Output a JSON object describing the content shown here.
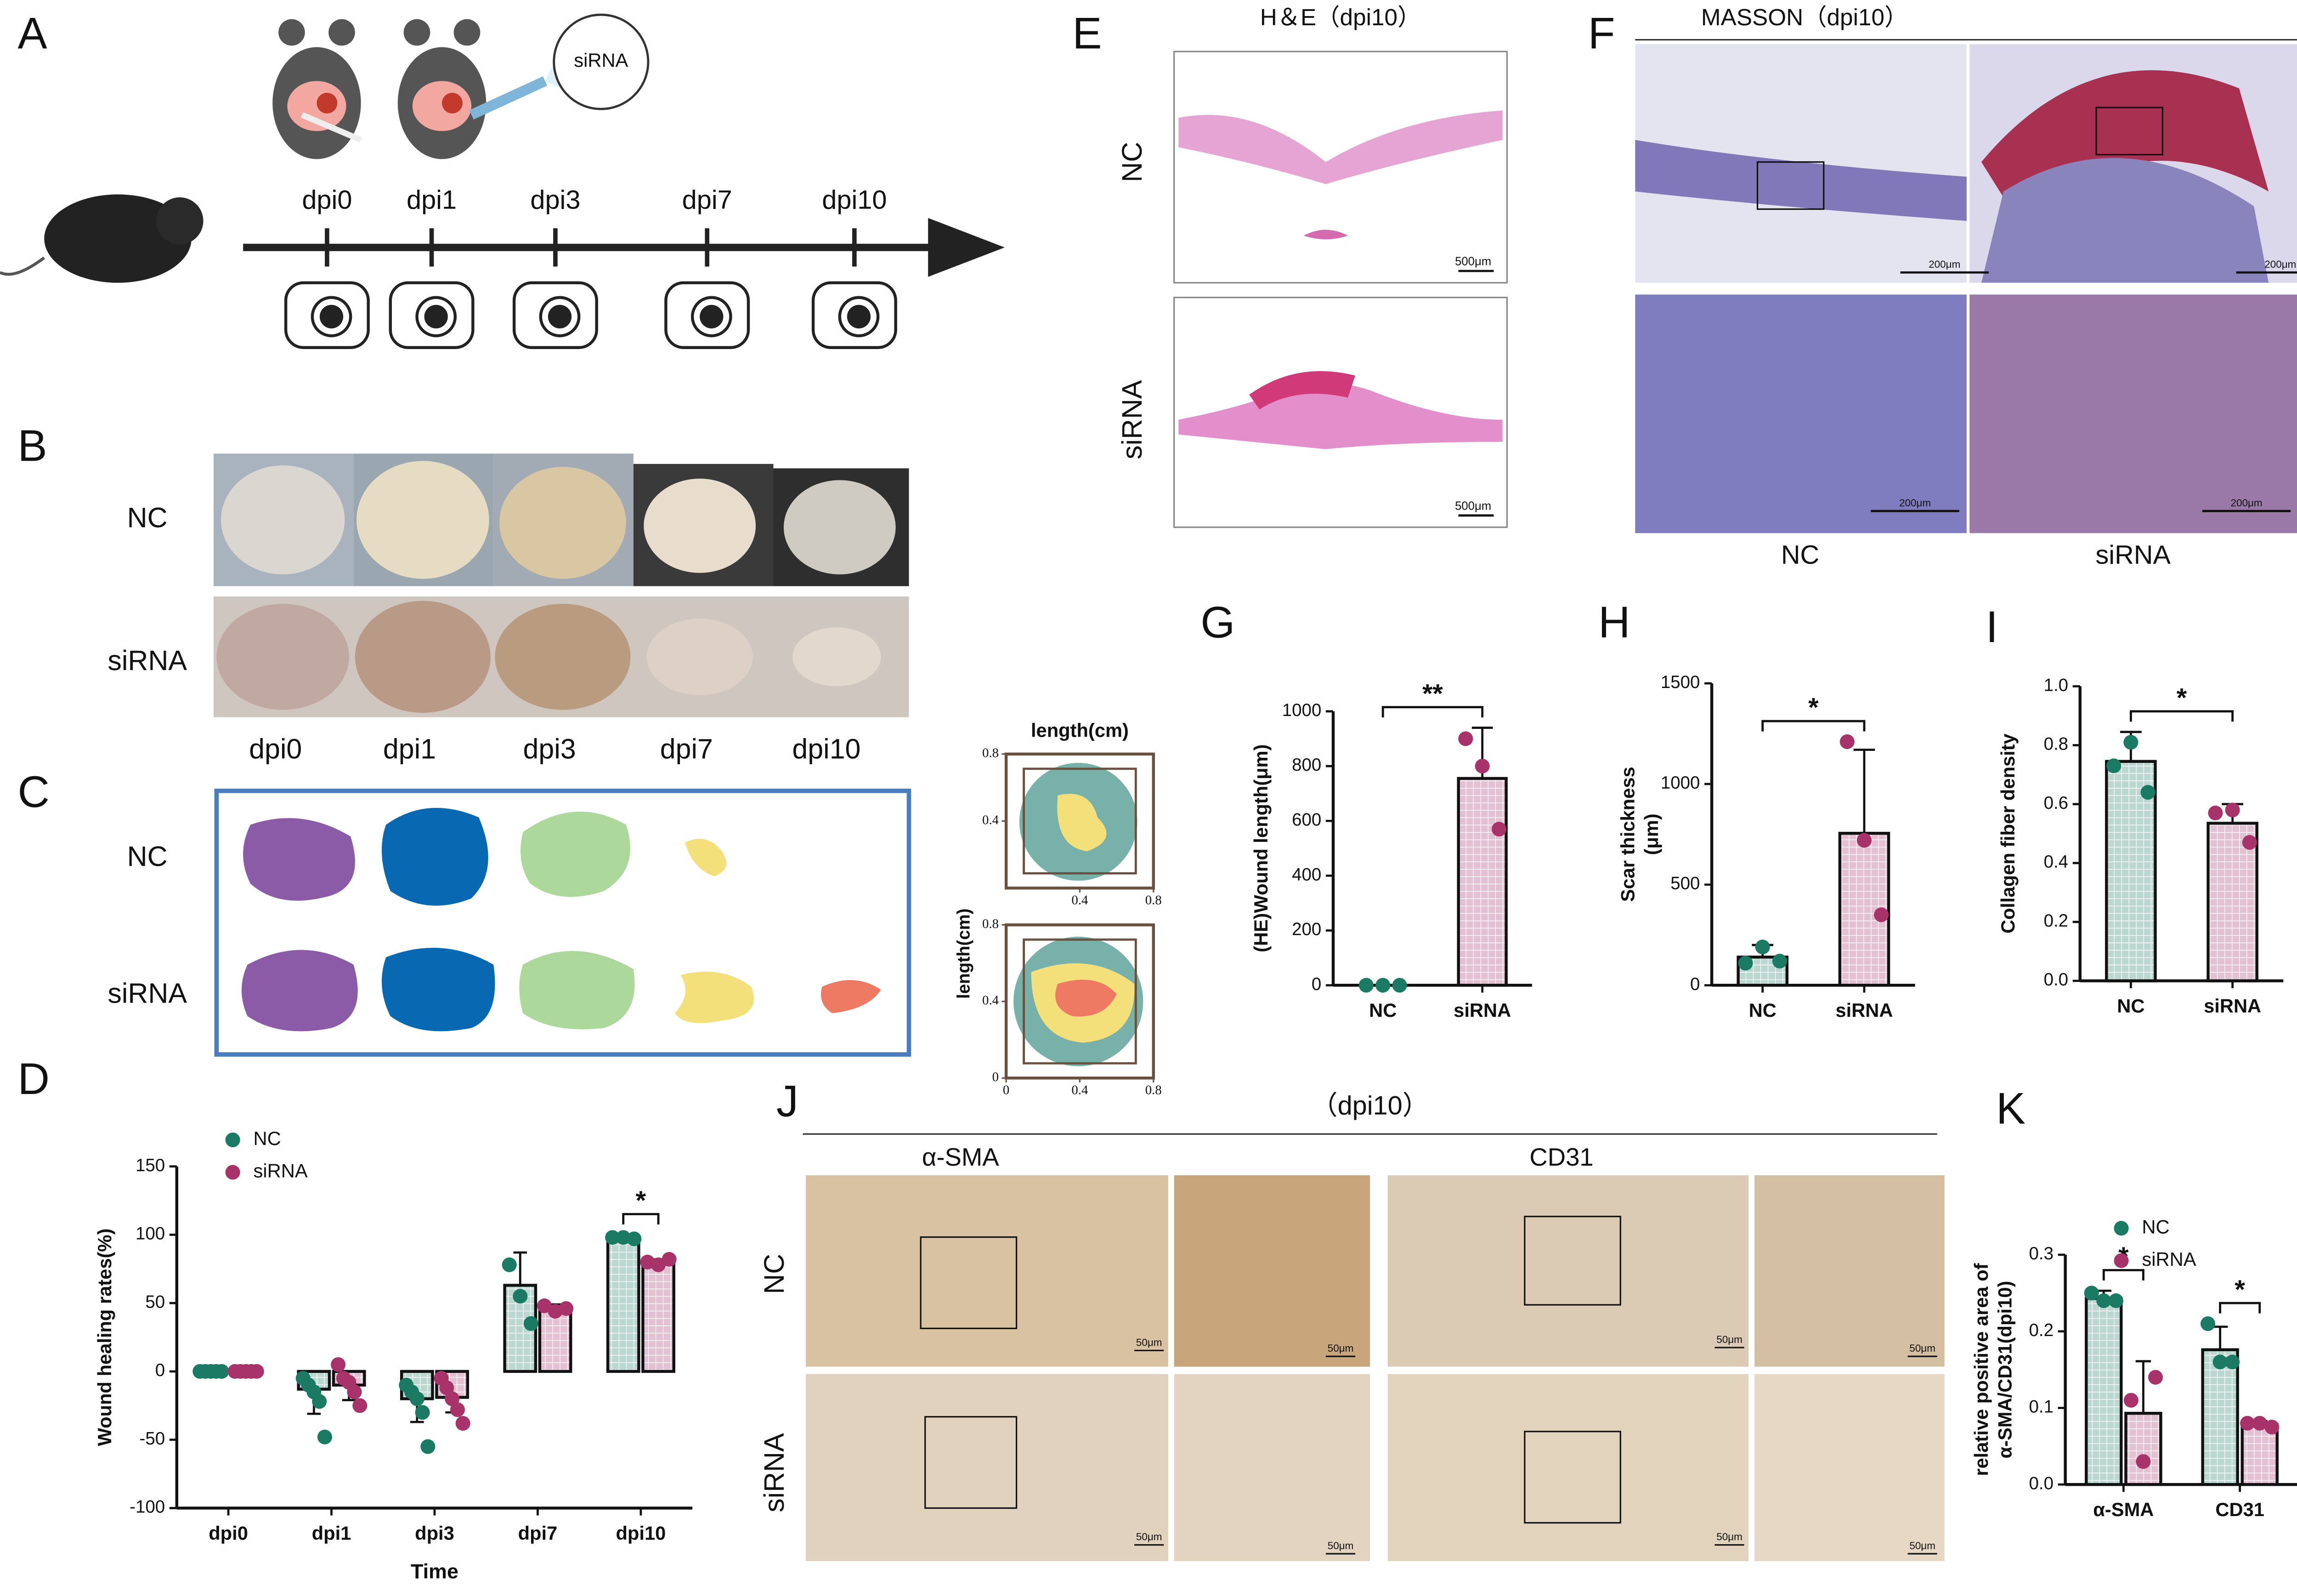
{
  "figure": {
    "panel_labels": [
      "A",
      "B",
      "C",
      "D",
      "E",
      "F",
      "G",
      "H",
      "I",
      "J",
      "K"
    ],
    "a": {
      "timepoints": [
        "dpi0",
        "dpi1",
        "dpi3",
        "dpi7",
        "dpi10"
      ],
      "injection": "siRNA"
    },
    "b": {
      "rows": [
        "NC",
        "siRNA"
      ],
      "timepoints": [
        "dpi0",
        "dpi1",
        "dpi3",
        "dpi7",
        "dpi10"
      ]
    },
    "c": {
      "rows": [
        "NC",
        "siRNA"
      ]
    },
    "e": {
      "title": "H＆E（dpi10）",
      "rows": [
        "NC",
        "siRNA"
      ],
      "scale_bars": [
        "500μm",
        "500μm"
      ]
    },
    "f": {
      "title": "MASSON（dpi10）",
      "columns": [
        "NC",
        "siRNA"
      ],
      "scale_bars": [
        "200μm",
        "200μm",
        "200μm",
        "200μm"
      ]
    },
    "j": {
      "title": "（dpi10）",
      "columns": [
        "α-SMA",
        "CD31"
      ],
      "rows": [
        "NC",
        "siRNA"
      ],
      "scale_bars": [
        "50μm",
        "50μm",
        "50μm",
        "50μm",
        "50μm",
        "50μm",
        "50μm",
        "50μm"
      ]
    }
  },
  "chart_data": [
    {
      "type": "outline",
      "title": "length(cm)",
      "xlim": [
        0,
        0.8
      ],
      "ylim": [
        0,
        0.8
      ],
      "xticks": [
        0.4,
        0.8
      ],
      "yticks": [
        0.4,
        0.8
      ]
    },
    {
      "type": "outline",
      "ylabel": "length(cm)",
      "xlim": [
        0,
        0.8
      ],
      "ylim": [
        0,
        0.8
      ],
      "xticks": [
        0,
        0.4,
        0.8
      ],
      "yticks": [
        0,
        0.4,
        0.8
      ]
    },
    {
      "type": "bar",
      "categories": [
        "dpi0",
        "dpi1",
        "dpi3",
        "dpi7",
        "dpi10"
      ],
      "xlabel": "Time",
      "ylabel": "Wound healing rates(%)",
      "ylim": [
        -100,
        150
      ],
      "yticks": [
        -100,
        -50,
        0,
        50,
        100,
        150
      ],
      "legend": "upper left",
      "series": [
        {
          "name": "NC",
          "color": "#1b7a63",
          "values": [
            0,
            -13,
            -20,
            63,
            98
          ],
          "errors": [
            0,
            18,
            17,
            24,
            2
          ],
          "points": [
            [
              0,
              0,
              0,
              0,
              0
            ],
            [
              -5,
              -10,
              -15,
              -22,
              -48
            ],
            [
              -10,
              -15,
              -20,
              -30,
              -55
            ],
            [
              78,
              55,
              35
            ],
            [
              98,
              98,
              97
            ]
          ]
        },
        {
          "name": "siRNA",
          "color": "#a8336b",
          "values": [
            0,
            -10,
            -19,
            46,
            79
          ],
          "errors": [
            0,
            11,
            11,
            3,
            3
          ],
          "points": [
            [
              0,
              0,
              0,
              0,
              0
            ],
            [
              5,
              -5,
              -8,
              -15,
              -25
            ],
            [
              -5,
              -12,
              -20,
              -28,
              -38
            ],
            [
              48,
              44,
              46
            ],
            [
              80,
              78,
              82
            ]
          ]
        }
      ],
      "significance": [
        null,
        null,
        null,
        null,
        "*"
      ]
    },
    {
      "type": "bar",
      "categories": [
        "NC",
        "siRNA"
      ],
      "ylabel": "(HE)Wound length(μm)",
      "colors": [
        "#1b7a63",
        "#a8336b"
      ],
      "values": [
        0,
        755
      ],
      "errors": [
        0,
        185
      ],
      "points": [
        [
          0,
          0,
          0
        ],
        [
          900,
          800,
          570
        ]
      ],
      "ylim": [
        0,
        1000
      ],
      "yticks": [
        0,
        200,
        400,
        600,
        800,
        1000
      ],
      "significance": "**"
    },
    {
      "type": "bar",
      "categories": [
        "NC",
        "siRNA"
      ],
      "ylabel": [
        "Scar thickness",
        "(μm)"
      ],
      "colors": [
        "#1b7a63",
        "#a8336b"
      ],
      "values": [
        140,
        755
      ],
      "errors": [
        60,
        415
      ],
      "points": [
        [
          110,
          190,
          120
        ],
        [
          1210,
          720,
          350
        ]
      ],
      "ylim": [
        0,
        1500
      ],
      "yticks": [
        0,
        500,
        1000,
        1500
      ],
      "significance": "*"
    },
    {
      "type": "bar",
      "categories": [
        "NC",
        "siRNA"
      ],
      "ylabel": "Collagen fiber density",
      "colors": [
        "#1b7a63",
        "#a8336b"
      ],
      "values": [
        0.745,
        0.535
      ],
      "errors": [
        0.1,
        0.065
      ],
      "points": [
        [
          0.73,
          0.81,
          0.64
        ],
        [
          0.57,
          0.58,
          0.47
        ]
      ],
      "ylim": [
        0,
        1
      ],
      "yticks": [
        {
          "value": 0,
          "label": "0.0"
        },
        0.2,
        0.4,
        0.6,
        0.8,
        {
          "value": 1,
          "label": "1.0"
        }
      ],
      "significance": "*"
    },
    {
      "type": "bar",
      "categories": [
        "α-SMA",
        "CD31"
      ],
      "ylabel": [
        "relative positive area of",
        "α-SMA/CD31(dpi10)"
      ],
      "ylim": [
        0,
        0.3
      ],
      "yticks": [
        {
          "value": 0,
          "label": "0.0"
        },
        0.1,
        0.2,
        0.3
      ],
      "legend": "upper left",
      "series": [
        {
          "name": "NC",
          "color": "#1b7a63",
          "values": [
            0.243,
            0.176
          ],
          "errors": [
            0.01,
            0.03
          ],
          "points": [
            [
              0.25,
              0.24,
              0.24
            ],
            [
              0.21,
              0.16,
              0.16
            ]
          ]
        },
        {
          "name": "siRNA",
          "color": "#a8336b",
          "values": [
            0.093,
            0.078
          ],
          "errors": [
            0.068,
            0.005
          ],
          "points": [
            [
              0.11,
              0.03,
              0.14
            ],
            [
              0.08,
              0.08,
              0.075
            ]
          ]
        }
      ],
      "significance": [
        "*",
        "*"
      ]
    }
  ]
}
